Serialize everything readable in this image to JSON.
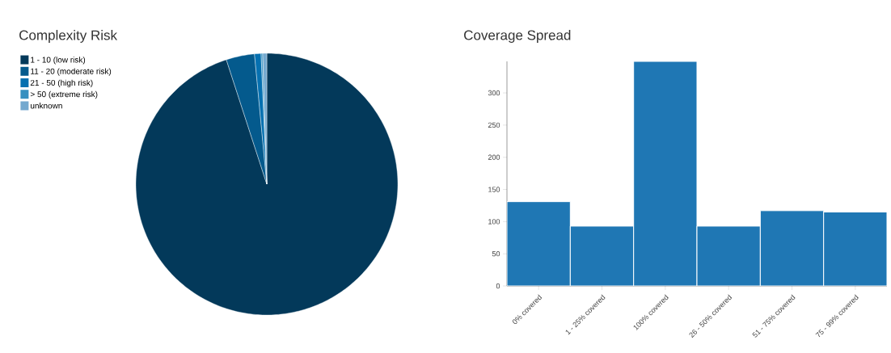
{
  "chart_data": [
    {
      "type": "pie",
      "title": "Complexity Risk",
      "categories": [
        "1 - 10 (low risk)",
        "11 - 20 (moderate risk)",
        "21 - 50 (high risk)",
        "> 50 (extreme risk)",
        "unknown"
      ],
      "values": [
        95.0,
        3.5,
        0.8,
        0.2,
        0.5
      ],
      "colors": [
        "#03395a",
        "#045a8d",
        "#0570b0",
        "#3690c0",
        "#74a9cf"
      ],
      "legend": "top left"
    },
    {
      "type": "bar",
      "title": "Coverage Spread",
      "categories": [
        "0% covered",
        "1 - 25% covered",
        "100% covered",
        "26 - 50% covered",
        "51 - 75% covered",
        "75 - 99% covered"
      ],
      "values": [
        131,
        93,
        349,
        93,
        117,
        115
      ],
      "color": "#1f77b4",
      "ylim": [
        0,
        349
      ],
      "yticks": [
        0,
        50,
        100,
        150,
        200,
        250,
        300
      ]
    }
  ]
}
